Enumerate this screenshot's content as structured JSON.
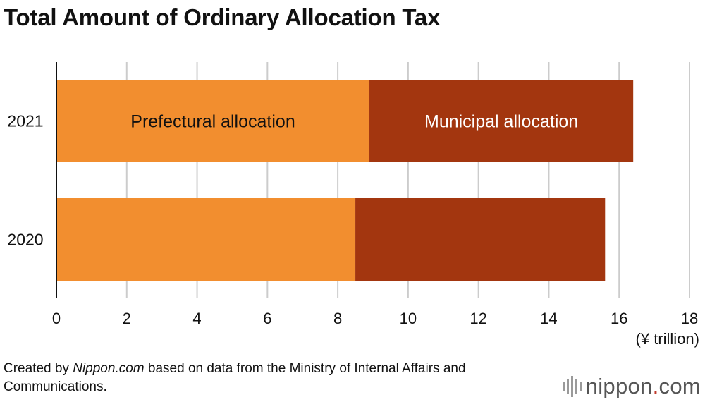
{
  "title": "Total Amount of Ordinary Allocation Tax",
  "source": {
    "prefix": "Created by ",
    "site": "Nippon.com",
    "suffix": " based on data from the Ministry of Internal Affairs and Communications."
  },
  "logo": {
    "word": "nippon",
    "dot": ".",
    "tld": "com"
  },
  "colors": {
    "prefectural": "#f28e2f",
    "municipal": "#a3360f",
    "grid": "#cccccc",
    "axis": "#111111"
  },
  "chart_data": {
    "type": "bar",
    "orientation": "horizontal",
    "stacked": true,
    "categories": [
      "2021",
      "2020"
    ],
    "series": [
      {
        "name": "Prefectural allocation",
        "values": [
          8.9,
          8.5
        ]
      },
      {
        "name": "Municipal allocation",
        "values": [
          7.5,
          7.1
        ]
      }
    ],
    "xlim": [
      0,
      18
    ],
    "xticks": [
      0,
      2,
      4,
      6,
      8,
      10,
      12,
      14,
      16,
      18
    ],
    "xunit": "(¥ trillion)",
    "grid": "vertical",
    "legend": "inside-bars"
  }
}
